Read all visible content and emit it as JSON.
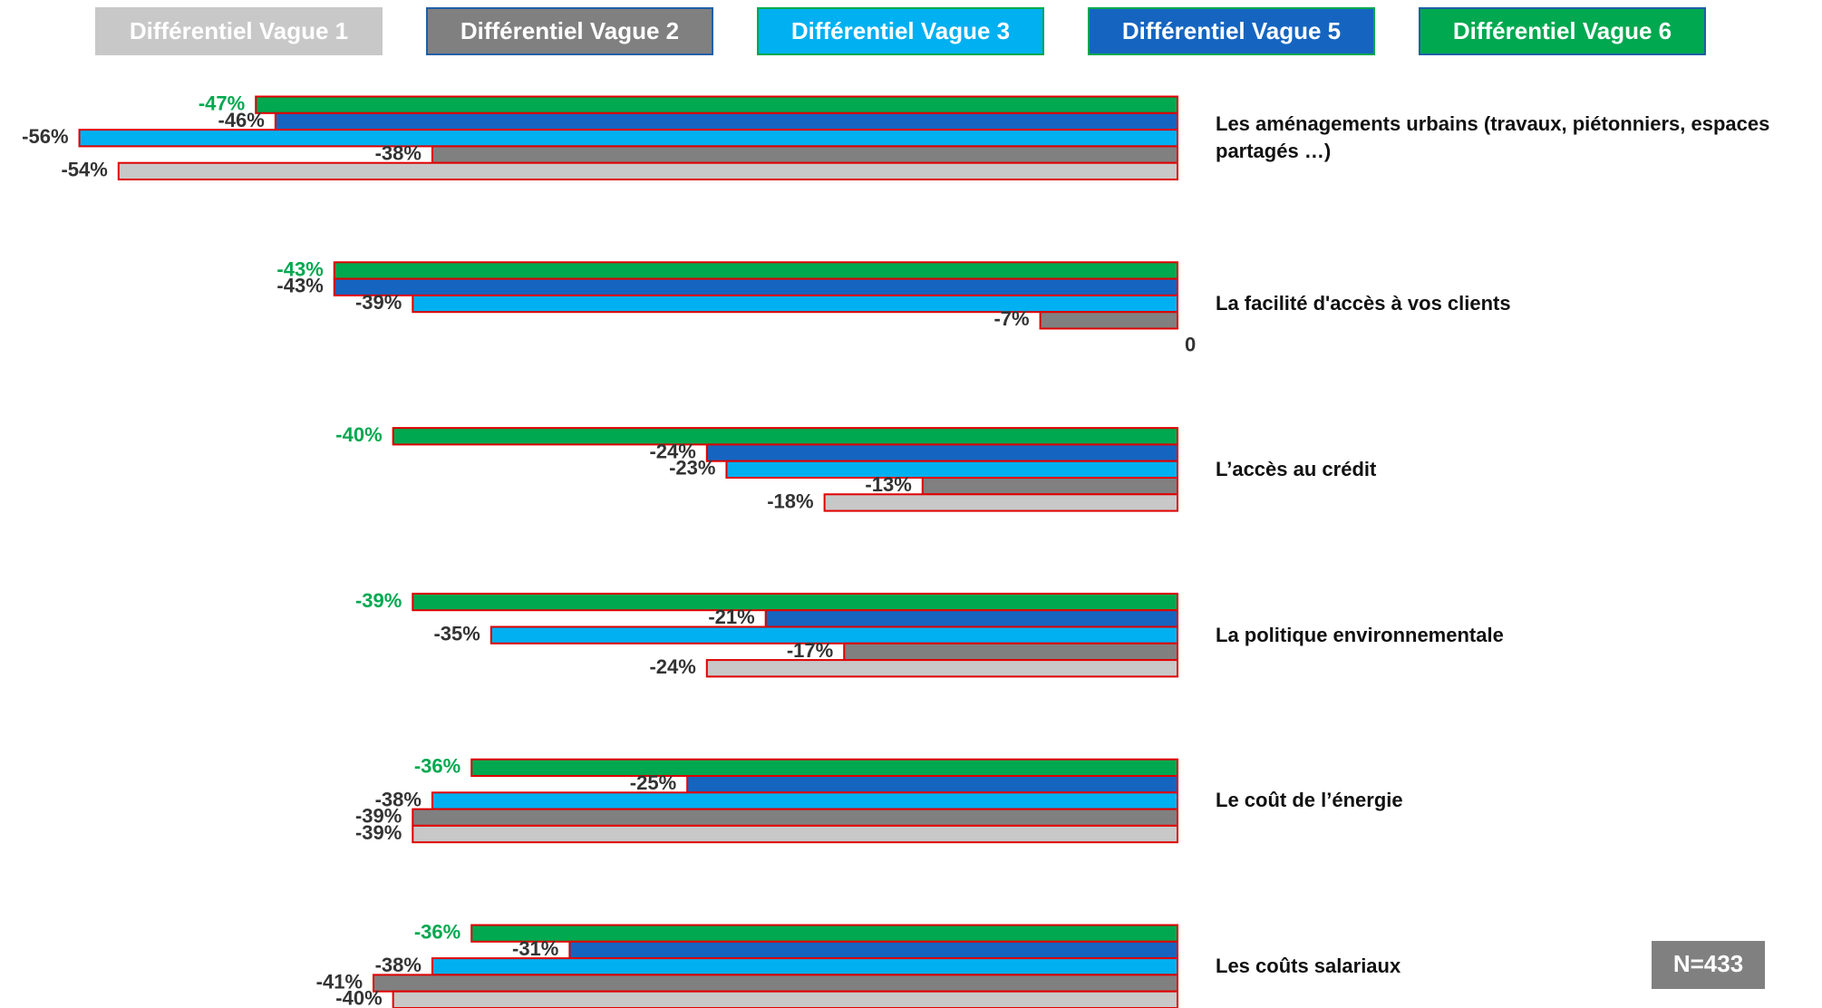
{
  "chart_data": {
    "type": "hbar",
    "categories": [
      "Les aménagements urbains (travaux, piétonniers, espaces partagés …)",
      "La facilité d'accès à vos clients",
      "L’accès au crédit",
      "La politique environnementale",
      "Le coût de l’énergie",
      "Les coûts salariaux"
    ],
    "series": [
      {
        "name": "Différentiel Vague 1",
        "color": "#c8c8c8",
        "border": "#c8c8c8",
        "label_color": "#333333",
        "values": [
          -54,
          0,
          -18,
          -24,
          -39,
          -40
        ],
        "value_labels": [
          "-54%",
          "0",
          "-18%",
          "-24%",
          "-39%",
          "-40%"
        ]
      },
      {
        "name": "Différentiel Vague 2",
        "color": "#808080",
        "border": "#1f5fa8",
        "label_color": "#333333",
        "values": [
          -38,
          -7,
          -13,
          -17,
          -39,
          -41
        ],
        "value_labels": [
          "-38%",
          "-7%",
          "-13%",
          "-17%",
          "-39%",
          "-41%"
        ]
      },
      {
        "name": "Différentiel Vague 3",
        "color": "#00b0f0",
        "border": "#00a84f",
        "label_color": "#333333",
        "values": [
          -56,
          -39,
          -23,
          -35,
          -38,
          -38
        ],
        "value_labels": [
          "-56%",
          "-39%",
          "-23%",
          "-35%",
          "-38%",
          "-38%"
        ]
      },
      {
        "name": "Différentiel Vague 5",
        "color": "#1565c0",
        "border": "#00a84f",
        "label_color": "#333333",
        "values": [
          -46,
          -43,
          -24,
          -21,
          -25,
          -31
        ],
        "value_labels": [
          "-46%",
          "-43%",
          "-24%",
          "-21%",
          "-25%",
          "-31%"
        ]
      },
      {
        "name": "Différentiel Vague 6",
        "color": "#00a84f",
        "border": "#1f5fa8",
        "label_color": "#00a84f",
        "values": [
          -47,
          -43,
          -40,
          -39,
          -36,
          -36
        ],
        "value_labels": [
          "-47%",
          "-43%",
          "-40%",
          "-39%",
          "-36%",
          "-36%"
        ]
      }
    ],
    "xlim": [
      -60,
      0
    ],
    "edge_color": "#e00000",
    "note": "N=433"
  }
}
